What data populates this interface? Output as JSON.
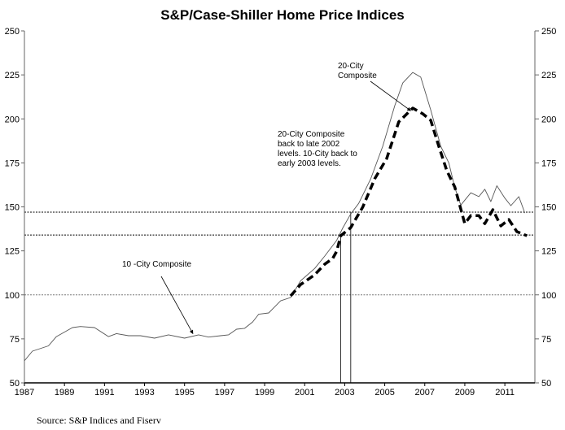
{
  "chart_data": {
    "type": "line",
    "title": "S&P/Case-Shiller Home Price Indices",
    "xlabel": "",
    "ylabel": "",
    "xlim": [
      1987,
      2012.5
    ],
    "ylim": [
      50,
      250
    ],
    "x_ticks": [
      "1987",
      "1989",
      "1991",
      "1993",
      "1995",
      "1997",
      "1999",
      "2001",
      "2003",
      "2005",
      "2007",
      "2009",
      "2011"
    ],
    "y_ticks_left": [
      "50",
      "75",
      "100",
      "125",
      "150",
      "175",
      "200",
      "225",
      "250"
    ],
    "y_ticks_right": [
      "50",
      "75",
      "100",
      "125",
      "150",
      "175",
      "200",
      "225",
      "250"
    ],
    "grid": false,
    "legend": "none",
    "series": [
      {
        "name": "10-City Composite",
        "style": "thin-solid",
        "x": [
          1987.0,
          1987.4,
          1988.2,
          1988.6,
          1989.4,
          1989.8,
          1990.5,
          1991.2,
          1991.6,
          1992.2,
          1992.8,
          1993.5,
          1994.2,
          1995.0,
          1995.7,
          1996.2,
          1996.8,
          1997.2,
          1997.6,
          1998.0,
          1998.4,
          1998.7,
          1999.2,
          1999.8,
          2000.3,
          2000.8,
          2001.5,
          2002.0,
          2002.6,
          2002.9,
          2003.3,
          2003.7,
          2004.3,
          2004.9,
          2005.5,
          2005.9,
          2006.4,
          2006.8,
          2007.3,
          2007.8,
          2008.2,
          2008.5,
          2008.8,
          2009.3,
          2009.7,
          2010.0,
          2010.3,
          2010.6,
          2011.0,
          2011.3,
          2011.7,
          2012.0
        ],
        "values": [
          62.5,
          68,
          71,
          76.3,
          81.4,
          82,
          81.4,
          76.3,
          78,
          76.8,
          76.8,
          75.4,
          77.3,
          75.4,
          77.3,
          76,
          76.8,
          77.3,
          80.5,
          81,
          84.6,
          89,
          89.7,
          96.6,
          98.5,
          108,
          115,
          122,
          131,
          138,
          146,
          152,
          166,
          184.4,
          207.5,
          220.4,
          226.4,
          223.7,
          205,
          184.4,
          175,
          161,
          151,
          158,
          155.8,
          160,
          153,
          162,
          155,
          150.7,
          155.8,
          146.5
        ]
      },
      {
        "name": "20-City Composite",
        "style": "thick-dashed",
        "x": [
          2000.3,
          2000.8,
          2001.5,
          2002.0,
          2002.4,
          2002.6,
          2002.8,
          2003.3,
          2003.9,
          2004.5,
          2005.1,
          2005.7,
          2006.4,
          2006.9,
          2007.3,
          2007.7,
          2008.1,
          2008.5,
          2009.0,
          2009.3,
          2009.7,
          2010.0,
          2010.4,
          2010.8,
          2011.2,
          2011.6,
          2012.1
        ],
        "values": [
          99.4,
          105.9,
          111.4,
          117.4,
          120.7,
          124.8,
          133.6,
          138.2,
          149.8,
          166,
          177.5,
          198.3,
          206.1,
          202.9,
          199.2,
          184.4,
          170.6,
          161.3,
          140.5,
          145,
          145,
          140.5,
          148.4,
          139.2,
          142.8,
          135.9,
          133.6
        ]
      }
    ],
    "reference_lines": [
      {
        "type": "horizontal",
        "y": 100,
        "style": "dotted-gray"
      },
      {
        "type": "horizontal",
        "y": 147,
        "style": "dotted-black"
      },
      {
        "type": "horizontal",
        "y": 134,
        "style": "dotted-black"
      },
      {
        "type": "vertical",
        "x": 2002.8,
        "to_y": 134
      },
      {
        "type": "vertical",
        "x": 2003.3,
        "to_y": 147
      }
    ],
    "annotations": [
      {
        "id": "label20",
        "lines": [
          "20-City",
          "Composite"
        ],
        "arrow_to": {
          "x": 2006.3,
          "y": 206
        }
      },
      {
        "id": "note",
        "lines": [
          "20-City Composite",
          "back to late  2002",
          "levels.  10-City back to",
          "early 2003 levels."
        ]
      },
      {
        "id": "label10",
        "lines": [
          "10 -City Composite"
        ],
        "arrow_to": {
          "x": 1995.5,
          "y": 77
        }
      }
    ]
  },
  "source": "Source: S&P Indices and Fiserv"
}
